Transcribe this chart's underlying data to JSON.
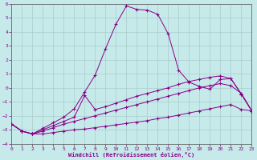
{
  "xlabel": "Windchill (Refroidissement éolien,°C)",
  "xlim": [
    0,
    23
  ],
  "ylim": [
    -4,
    6
  ],
  "xticks": [
    0,
    1,
    2,
    3,
    4,
    5,
    6,
    7,
    8,
    9,
    10,
    11,
    12,
    13,
    14,
    15,
    16,
    17,
    18,
    19,
    20,
    21,
    22,
    23
  ],
  "yticks": [
    -4,
    -3,
    -2,
    -1,
    0,
    1,
    2,
    3,
    4,
    5,
    6
  ],
  "bg_color": "#c6eaea",
  "grid_color": "#a8cccc",
  "line_color": "#880088",
  "series": [
    {
      "x": [
        0,
        1,
        2,
        3,
        4,
        5,
        6,
        7,
        8,
        9,
        10,
        11,
        12,
        13,
        14,
        15,
        16,
        17,
        18,
        19,
        20,
        21,
        22,
        23
      ],
      "y": [
        -2.6,
        -3.1,
        -3.3,
        -3.3,
        -3.2,
        -3.1,
        -3.0,
        -2.95,
        -2.85,
        -2.75,
        -2.65,
        -2.55,
        -2.45,
        -2.35,
        -2.2,
        -2.1,
        -1.95,
        -1.8,
        -1.65,
        -1.5,
        -1.35,
        -1.2,
        -1.55,
        -1.65
      ]
    },
    {
      "x": [
        0,
        1,
        2,
        3,
        4,
        5,
        6,
        7,
        8,
        9,
        10,
        11,
        12,
        13,
        14,
        15,
        16,
        17,
        18,
        19,
        20,
        21,
        22,
        23
      ],
      "y": [
        -2.6,
        -3.1,
        -3.3,
        -3.1,
        -2.85,
        -2.6,
        -2.4,
        -2.2,
        -2.0,
        -1.8,
        -1.6,
        -1.4,
        -1.2,
        -1.0,
        -0.8,
        -0.6,
        -0.4,
        -0.2,
        0.0,
        0.15,
        0.3,
        0.15,
        -0.4,
        -1.65
      ]
    },
    {
      "x": [
        0,
        1,
        2,
        3,
        4,
        5,
        6,
        7,
        8,
        9,
        10,
        11,
        12,
        13,
        14,
        15,
        16,
        17,
        18,
        19,
        20,
        21,
        22,
        23
      ],
      "y": [
        -2.6,
        -3.1,
        -3.3,
        -3.0,
        -2.7,
        -2.4,
        -2.1,
        -0.55,
        -1.55,
        -1.35,
        -1.1,
        -0.85,
        -0.6,
        -0.4,
        -0.2,
        0.0,
        0.25,
        0.45,
        0.6,
        0.75,
        0.85,
        0.65,
        -0.45,
        -1.65
      ]
    },
    {
      "x": [
        0,
        1,
        2,
        3,
        4,
        5,
        6,
        7,
        8,
        9,
        10,
        11,
        12,
        13,
        14,
        15,
        16,
        17,
        18,
        19,
        20,
        21,
        22,
        23
      ],
      "y": [
        -2.6,
        -3.1,
        -3.3,
        -2.9,
        -2.5,
        -2.1,
        -1.5,
        -0.3,
        0.9,
        2.8,
        4.55,
        5.85,
        5.6,
        5.55,
        5.25,
        3.85,
        1.25,
        0.4,
        0.1,
        -0.1,
        0.6,
        0.65,
        -0.45,
        -1.65
      ]
    }
  ]
}
